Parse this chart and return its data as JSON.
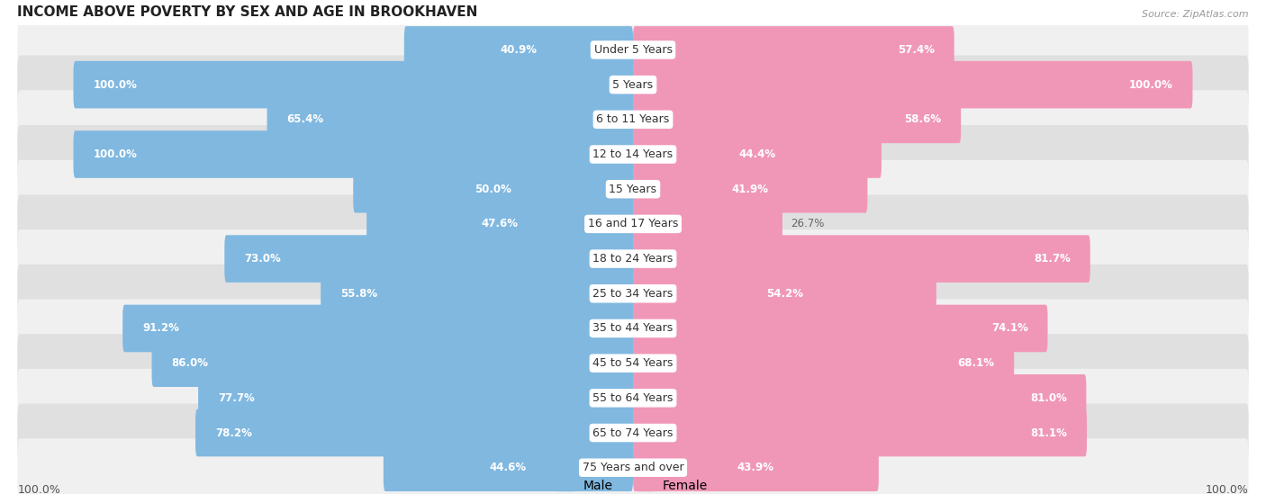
{
  "title": "INCOME ABOVE POVERTY BY SEX AND AGE IN BROOKHAVEN",
  "source": "Source: ZipAtlas.com",
  "categories": [
    "Under 5 Years",
    "5 Years",
    "6 to 11 Years",
    "12 to 14 Years",
    "15 Years",
    "16 and 17 Years",
    "18 to 24 Years",
    "25 to 34 Years",
    "35 to 44 Years",
    "45 to 54 Years",
    "55 to 64 Years",
    "65 to 74 Years",
    "75 Years and over"
  ],
  "male_values": [
    40.9,
    100.0,
    65.4,
    100.0,
    50.0,
    47.6,
    73.0,
    55.8,
    91.2,
    86.0,
    77.7,
    78.2,
    44.6
  ],
  "female_values": [
    57.4,
    100.0,
    58.6,
    44.4,
    41.9,
    26.7,
    81.7,
    54.2,
    74.1,
    68.1,
    81.0,
    81.1,
    43.9
  ],
  "male_color": "#80b8e0",
  "female_color": "#f097b8",
  "bg_row_light": "#f0f0f0",
  "bg_row_dark": "#e0e0e0",
  "max_value": 100.0,
  "legend_male": "Male",
  "legend_female": "Female"
}
